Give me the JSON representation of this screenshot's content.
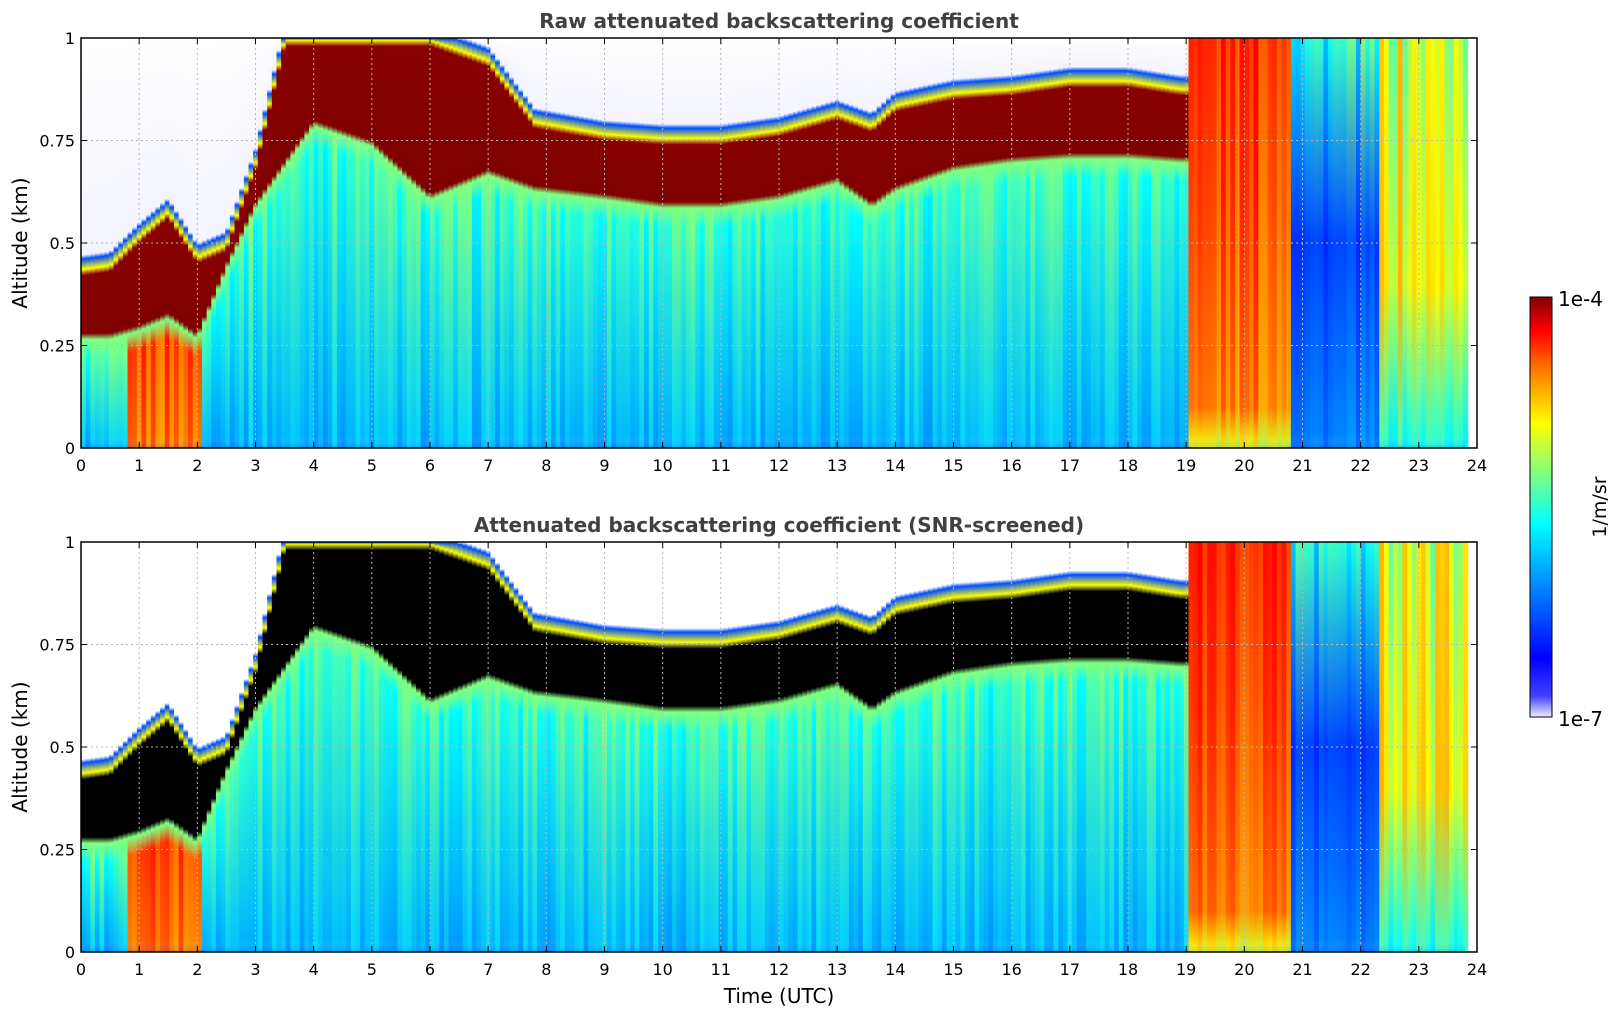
{
  "figure": {
    "xlabel": "Time (UTC)",
    "colorbar": {
      "label": "1/m/sr",
      "max_label": "1e-4",
      "min_label": "1e-7",
      "scale": "log"
    },
    "colors": {
      "title": "#404040",
      "grid": "#b8b8b8",
      "jet": [
        "#00008f",
        "#0000ff",
        "#0080ff",
        "#00ffff",
        "#80ff80",
        "#ffff00",
        "#ff8000",
        "#ff0000",
        "#800000"
      ],
      "screened_core": "#000000"
    }
  },
  "chart_data": [
    {
      "type": "heatmap",
      "title": "Raw attenuated backscattering coefficient",
      "ylabel": "Altitude (km)",
      "xlim": [
        0,
        24
      ],
      "ylim": [
        0,
        1
      ],
      "xticks": [
        0,
        1,
        2,
        3,
        4,
        5,
        6,
        7,
        8,
        9,
        10,
        11,
        12,
        13,
        14,
        15,
        16,
        17,
        18,
        19,
        20,
        21,
        22,
        23,
        24
      ],
      "yticks": [
        "0",
        "0.25",
        "0.5",
        "0.75",
        "1"
      ],
      "grid": true,
      "layer_base_km": {
        "x": [
          0,
          0.5,
          1,
          1.5,
          2,
          2.5,
          3,
          3.5,
          4,
          5,
          6,
          7,
          7.8,
          9,
          10,
          11,
          12,
          13,
          13.6,
          14,
          15,
          16,
          17,
          18,
          18.9
        ],
        "y": [
          0.28,
          0.28,
          0.3,
          0.33,
          0.28,
          0.45,
          0.6,
          0.7,
          0.8,
          0.75,
          0.62,
          0.68,
          0.64,
          0.62,
          0.6,
          0.6,
          0.62,
          0.66,
          0.6,
          0.64,
          0.69,
          0.71,
          0.72,
          0.72,
          0.71
        ]
      },
      "layer_top_km": {
        "x": [
          0,
          0.5,
          1,
          1.5,
          2,
          2.5,
          3,
          3.5,
          4,
          5,
          6,
          7,
          7.8,
          9,
          10,
          11,
          12,
          13,
          13.6,
          14,
          15,
          16,
          17,
          18,
          18.9
        ],
        "y": [
          0.44,
          0.45,
          0.52,
          0.58,
          0.47,
          0.5,
          0.7,
          1.0,
          1.0,
          1.0,
          1.0,
          0.95,
          0.8,
          0.77,
          0.76,
          0.76,
          0.78,
          0.82,
          0.79,
          0.84,
          0.87,
          0.88,
          0.9,
          0.9,
          0.88
        ]
      },
      "low_level_cloud_periods_utc": [
        [
          0.8,
          2.1
        ],
        [
          19.0,
          20.8
        ],
        [
          22.3,
          23.8
        ]
      ],
      "no_data_after_utc": 23.8
    },
    {
      "type": "heatmap",
      "title": "Attenuated backscattering coefficient (SNR-screened)",
      "ylabel": "Altitude (km)",
      "xlabel": "Time (UTC)",
      "xlim": [
        0,
        24
      ],
      "ylim": [
        0,
        1
      ],
      "xticks": [
        0,
        1,
        2,
        3,
        4,
        5,
        6,
        7,
        8,
        9,
        10,
        11,
        12,
        13,
        14,
        15,
        16,
        17,
        18,
        19,
        20,
        21,
        22,
        23,
        24
      ],
      "yticks": [
        "0",
        "0.25",
        "0.5",
        "0.75",
        "1"
      ],
      "grid": true,
      "saturated_values_shown_in": "black",
      "layer_base_km": {
        "x": [
          0,
          0.5,
          1,
          1.5,
          2,
          2.5,
          3,
          3.5,
          4,
          5,
          6,
          7,
          7.8,
          9,
          10,
          11,
          12,
          13,
          13.6,
          14,
          15,
          16,
          17,
          18,
          18.9
        ],
        "y": [
          0.28,
          0.28,
          0.3,
          0.33,
          0.28,
          0.45,
          0.6,
          0.7,
          0.8,
          0.75,
          0.62,
          0.68,
          0.64,
          0.62,
          0.6,
          0.6,
          0.62,
          0.66,
          0.6,
          0.64,
          0.69,
          0.71,
          0.72,
          0.72,
          0.71
        ]
      },
      "layer_top_km": {
        "x": [
          0,
          0.5,
          1,
          1.5,
          2,
          2.5,
          3,
          3.5,
          4,
          5,
          6,
          7,
          7.8,
          9,
          10,
          11,
          12,
          13,
          13.6,
          14,
          15,
          16,
          17,
          18,
          18.9
        ],
        "y": [
          0.44,
          0.45,
          0.52,
          0.58,
          0.47,
          0.5,
          0.7,
          1.0,
          1.0,
          1.0,
          1.0,
          0.95,
          0.8,
          0.77,
          0.76,
          0.76,
          0.78,
          0.82,
          0.79,
          0.84,
          0.87,
          0.88,
          0.9,
          0.9,
          0.88
        ]
      },
      "low_level_cloud_periods_utc": [
        [
          0.8,
          2.1
        ],
        [
          19.0,
          20.8
        ],
        [
          22.3,
          23.8
        ]
      ],
      "no_data_after_utc": 23.8
    }
  ]
}
